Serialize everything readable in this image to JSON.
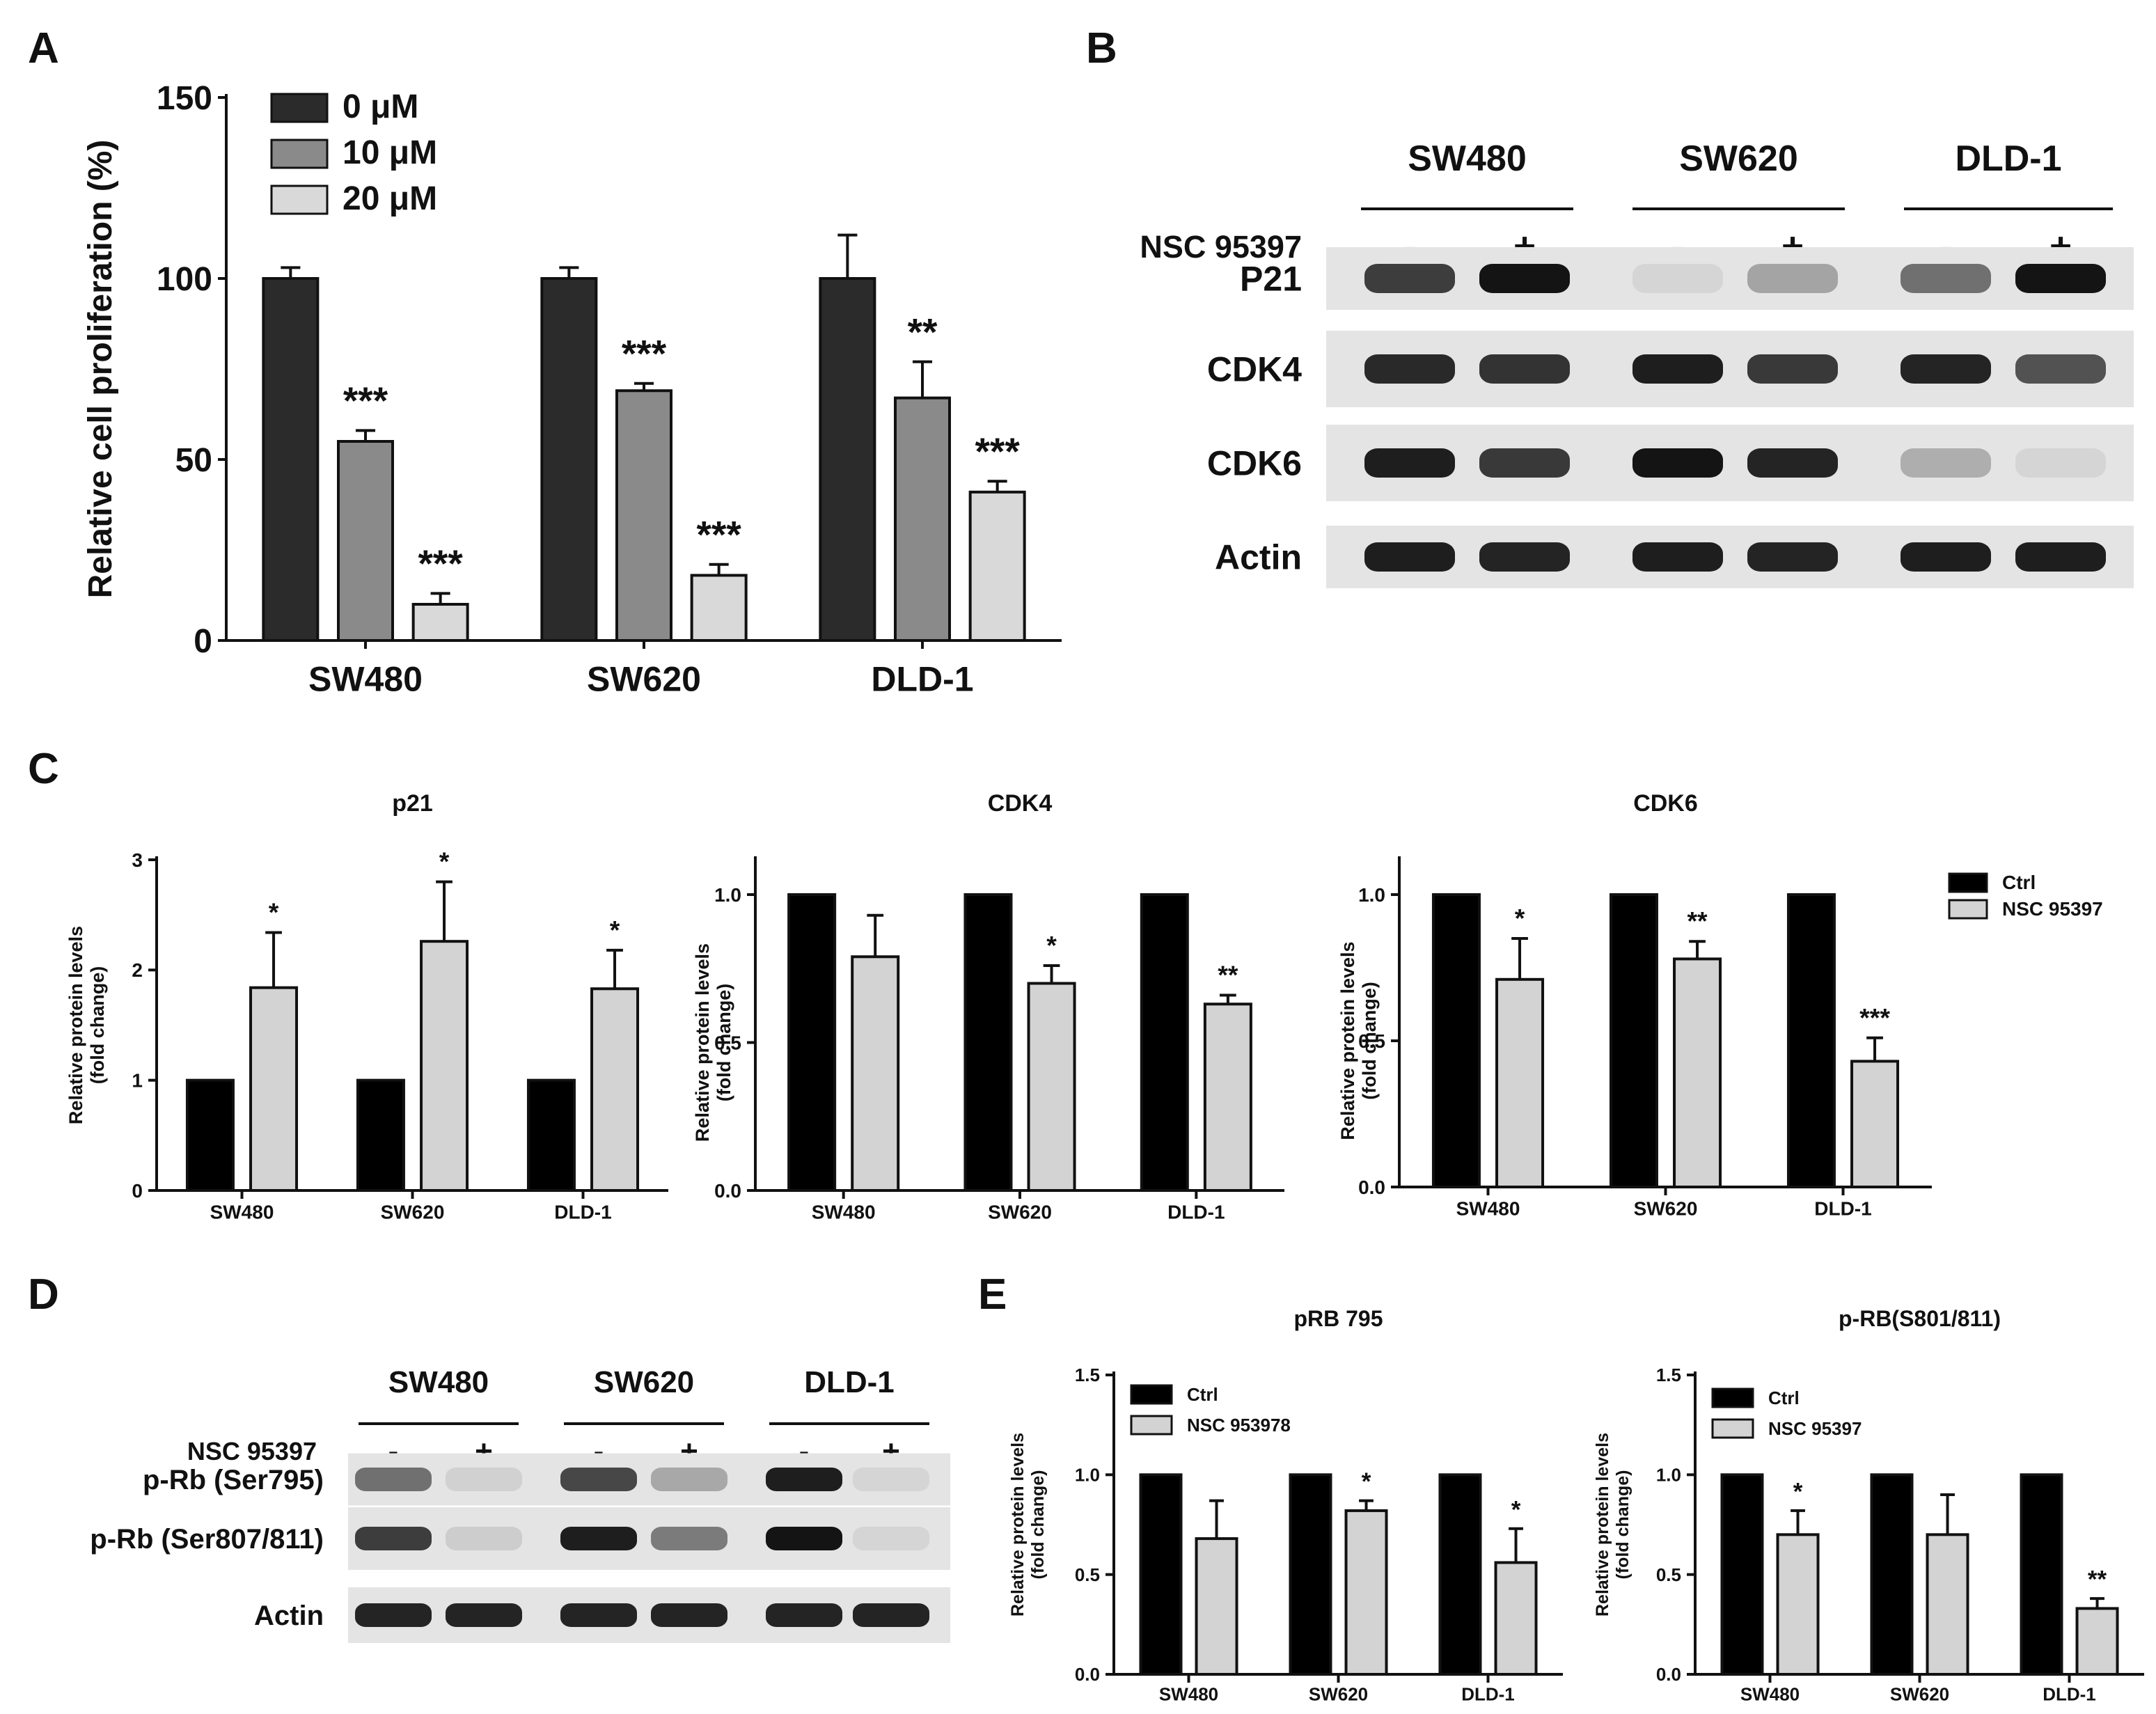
{
  "panel_labels": [
    "A",
    "B",
    "C",
    "D",
    "E"
  ],
  "colors": {
    "dose0": "#2b2b2b",
    "dose10": "#8a8a8a",
    "dose20": "#d9d9d9",
    "ctrl": "#000000",
    "nsc": "#d3d3d3",
    "band": "#1a1a1a"
  },
  "chart_data": [
    {
      "id": "A",
      "type": "bar",
      "title": "",
      "ylabel": "Relative cell proliferation (%)",
      "xlabel": "",
      "ylim": [
        0,
        150
      ],
      "yticks": [
        0,
        50,
        100,
        150
      ],
      "categories": [
        "SW480",
        "SW620",
        "DLD-1"
      ],
      "legend_position": "top-left",
      "series": [
        {
          "name": "0 μM",
          "color": "#2b2b2b",
          "values": [
            100,
            100,
            100
          ],
          "errors": [
            3,
            3,
            12
          ],
          "sig": [
            "",
            "",
            ""
          ]
        },
        {
          "name": "10 μM",
          "color": "#8a8a8a",
          "values": [
            55,
            69,
            67
          ],
          "errors": [
            3,
            2,
            10
          ],
          "sig": [
            "***",
            "***",
            "**"
          ]
        },
        {
          "name": "20 μM",
          "color": "#d9d9d9",
          "values": [
            10,
            18,
            41
          ],
          "errors": [
            3,
            3,
            3
          ],
          "sig": [
            "***",
            "***",
            "***"
          ]
        }
      ]
    },
    {
      "id": "C1",
      "type": "bar",
      "title": "p21",
      "ylabel": "Relative protein levels\n(fold change)",
      "ylim": [
        0,
        3
      ],
      "yticks": [
        "0",
        "1",
        "2",
        "3"
      ],
      "categories": [
        "SW480",
        "SW620",
        "DLD-1"
      ],
      "series": [
        {
          "name": "Ctrl",
          "color": "#000000",
          "values": [
            1,
            1,
            1
          ],
          "errors": [
            0,
            0,
            0
          ],
          "sig": [
            "",
            "",
            ""
          ]
        },
        {
          "name": "NSC 95397",
          "color": "#d3d3d3",
          "values": [
            1.84,
            2.26,
            1.83
          ],
          "errors": [
            0.5,
            0.54,
            0.35
          ],
          "sig": [
            "*",
            "*",
            "*"
          ]
        }
      ]
    },
    {
      "id": "C2",
      "type": "bar",
      "title": "CDK4",
      "ylabel": "Relative protein levels\n(fold change)",
      "ylim": [
        0,
        1.0
      ],
      "yticks": [
        "0.0",
        "0.5",
        "1.0"
      ],
      "categories": [
        "SW480",
        "SW620",
        "DLD-1"
      ],
      "series": [
        {
          "name": "Ctrl",
          "color": "#000000",
          "values": [
            1,
            1,
            1
          ],
          "errors": [
            0,
            0,
            0
          ],
          "sig": [
            "",
            "",
            ""
          ]
        },
        {
          "name": "NSC 95397",
          "color": "#d3d3d3",
          "values": [
            0.79,
            0.7,
            0.63
          ],
          "errors": [
            0.14,
            0.06,
            0.03
          ],
          "sig": [
            "",
            "*",
            "**"
          ]
        }
      ]
    },
    {
      "id": "C3",
      "type": "bar",
      "title": "CDK6",
      "ylabel": "Relative protein levels\n(fold change)",
      "ylim": [
        0,
        1.0
      ],
      "yticks": [
        "0.0",
        "0.5",
        "1.0"
      ],
      "categories": [
        "SW480",
        "SW620",
        "DLD-1"
      ],
      "legend": [
        "Ctrl",
        "NSC 95397"
      ],
      "legend_position": "right",
      "series": [
        {
          "name": "Ctrl",
          "color": "#000000",
          "values": [
            1,
            1,
            1
          ],
          "errors": [
            0,
            0,
            0
          ],
          "sig": [
            "",
            "",
            ""
          ]
        },
        {
          "name": "NSC 95397",
          "color": "#d3d3d3",
          "values": [
            0.71,
            0.78,
            0.43
          ],
          "errors": [
            0.14,
            0.06,
            0.08
          ],
          "sig": [
            "*",
            "**",
            "***"
          ]
        }
      ]
    },
    {
      "id": "E1",
      "type": "bar",
      "title": "pRB 795",
      "ylabel": "Relative protein levels\n(fold change)",
      "ylim": [
        0,
        1.5
      ],
      "yticks": [
        "0.0",
        "0.5",
        "1.0",
        "1.5"
      ],
      "categories": [
        "SW480",
        "SW620",
        "DLD-1"
      ],
      "legend": [
        "Ctrl",
        "NSC 953978"
      ],
      "legend_position": "top-left",
      "series": [
        {
          "name": "Ctrl",
          "color": "#000000",
          "values": [
            1,
            1,
            1
          ],
          "errors": [
            0,
            0,
            0
          ],
          "sig": [
            "",
            "",
            ""
          ]
        },
        {
          "name": "NSC 953978",
          "color": "#d3d3d3",
          "values": [
            0.68,
            0.82,
            0.56
          ],
          "errors": [
            0.19,
            0.05,
            0.17
          ],
          "sig": [
            "",
            "*",
            "*"
          ]
        }
      ]
    },
    {
      "id": "E2",
      "type": "bar",
      "title": "p-RB(S801/811)",
      "ylabel": "Relative protein levels\n(fold change)",
      "ylim": [
        0,
        1.5
      ],
      "yticks": [
        "0.0",
        "0.5",
        "1.0",
        "1.5"
      ],
      "categories": [
        "SW480",
        "SW620",
        "DLD-1"
      ],
      "legend": [
        "Ctrl",
        "NSC 95397"
      ],
      "legend_position": "top-left",
      "series": [
        {
          "name": "Ctrl",
          "color": "#000000",
          "values": [
            1,
            1,
            1
          ],
          "errors": [
            0,
            0,
            0
          ],
          "sig": [
            "",
            "",
            ""
          ]
        },
        {
          "name": "NSC 95397",
          "color": "#d3d3d3",
          "values": [
            0.7,
            0.7,
            0.33
          ],
          "errors": [
            0.12,
            0.2,
            0.05
          ],
          "sig": [
            "*",
            "",
            "**"
          ]
        }
      ]
    }
  ],
  "blots": [
    {
      "id": "B",
      "cell_lines": [
        "SW480",
        "SW620",
        "DLD-1"
      ],
      "treatment_label": "NSC 95397",
      "treatment_signs": [
        "-",
        "+",
        "-",
        "+",
        "-",
        "+"
      ],
      "rows": [
        {
          "label": "P21",
          "intensities": [
            0.8,
            1.0,
            0.06,
            0.3,
            0.55,
            1.0
          ]
        },
        {
          "label": "CDK4",
          "intensities": [
            0.9,
            0.85,
            0.95,
            0.82,
            0.92,
            0.7
          ]
        },
        {
          "label": "CDK6",
          "intensities": [
            0.95,
            0.82,
            1.0,
            0.92,
            0.25,
            0.06
          ]
        },
        {
          "label": "Actin",
          "intensities": [
            0.95,
            0.92,
            0.95,
            0.92,
            0.95,
            0.95
          ]
        }
      ]
    },
    {
      "id": "D",
      "cell_lines": [
        "SW480",
        "SW620",
        "DLD-1"
      ],
      "treatment_label": "NSC 95397",
      "treatment_signs": [
        "-",
        "+",
        "-",
        "+",
        "-",
        "+"
      ],
      "rows": [
        {
          "label": "p-Rb (Ser795)",
          "intensities": [
            0.55,
            0.08,
            0.75,
            0.28,
            0.95,
            0.06
          ]
        },
        {
          "label": "p-Rb (Ser807/811)",
          "intensities": [
            0.8,
            0.1,
            0.95,
            0.5,
            1.0,
            0.06
          ]
        },
        {
          "label": "Actin",
          "intensities": [
            0.92,
            0.92,
            0.92,
            0.92,
            0.92,
            0.92
          ]
        }
      ]
    }
  ]
}
